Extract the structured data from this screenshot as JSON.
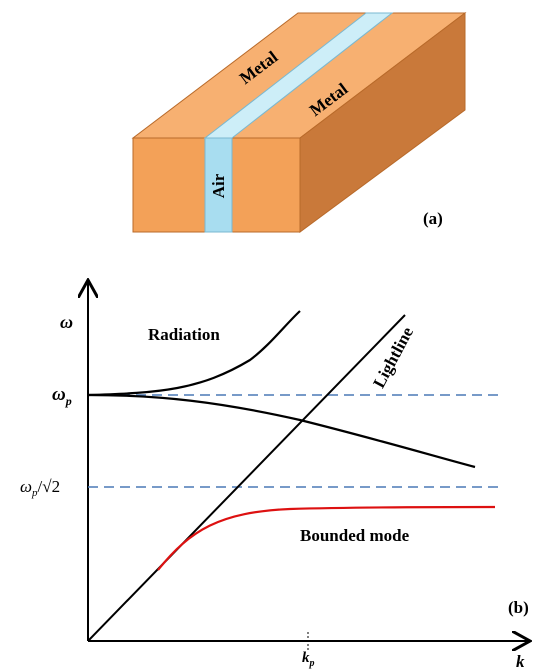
{
  "panel_a": {
    "top_left_label": "Metal",
    "top_right_label": "Metal",
    "slot_label": "Air",
    "tag": "(a)"
  },
  "panel_b": {
    "y_axis_label": "ω",
    "x_axis_label": "k",
    "omega_p": {
      "symbol": "ω",
      "subscript": "p"
    },
    "omega_sp": {
      "symbol": "ω",
      "subscript": "p",
      "rest": "/√2"
    },
    "k_p": {
      "symbol": "k",
      "subscript": "p"
    },
    "radiation_label": "Radiation",
    "lightline_label": "Lightline",
    "bounded_label": "Bounded mode",
    "tag": "(b)"
  }
}
